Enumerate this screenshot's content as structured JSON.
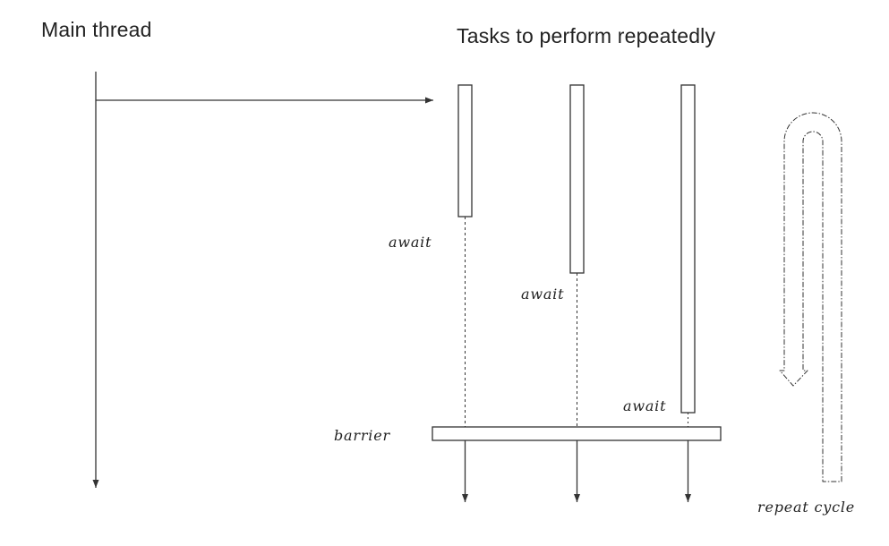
{
  "labels": {
    "main_thread": "Main thread",
    "tasks": "Tasks to perform repeatedly",
    "await": "await",
    "barrier": "barrier",
    "repeat_cycle": "repeat cycle"
  },
  "tasks": [
    {
      "label": "await"
    },
    {
      "label": "await"
    },
    {
      "label": "await"
    }
  ],
  "colors": {
    "line": "#333333",
    "background": "#ffffff"
  }
}
